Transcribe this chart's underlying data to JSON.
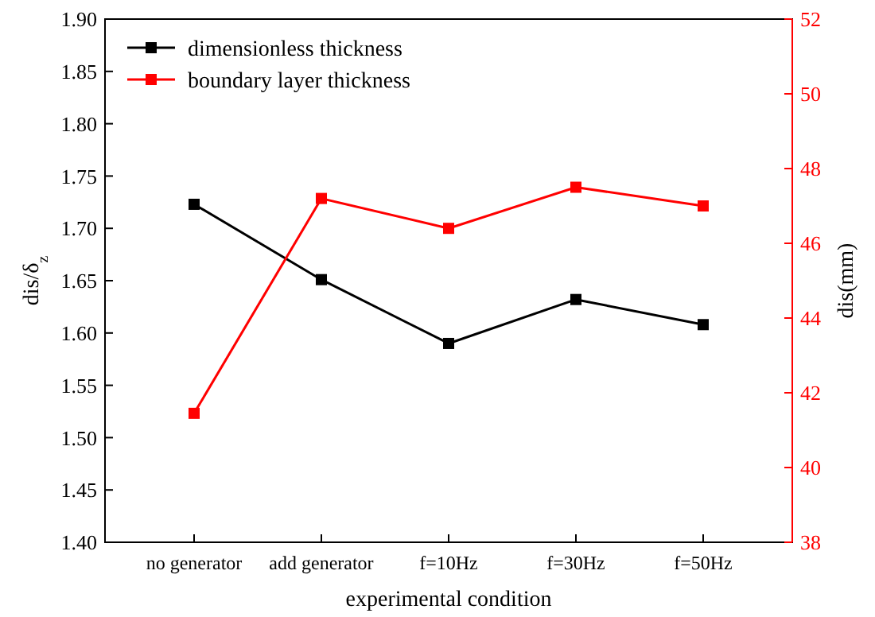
{
  "chart_data": {
    "type": "line",
    "xlabel": "experimental condition",
    "ylabel": "dis/δ$_{z}$",
    "y2label": "dis(mm)",
    "categories": [
      "no generator",
      "add generator",
      "f=10Hz",
      "f=30Hz",
      "f=50Hz"
    ],
    "ylim": [
      1.4,
      1.9
    ],
    "yticks": [
      {
        "value": 1.4,
        "label": "1.40"
      },
      {
        "value": 1.45,
        "label": "1.45"
      },
      {
        "value": 1.5,
        "label": "1.50"
      },
      {
        "value": 1.55,
        "label": "1.55"
      },
      {
        "value": 1.6,
        "label": "1.60"
      },
      {
        "value": 1.65,
        "label": "1.65"
      },
      {
        "value": 1.7,
        "label": "1.70"
      },
      {
        "value": 1.75,
        "label": "1.75"
      },
      {
        "value": 1.8,
        "label": "1.80"
      },
      {
        "value": 1.85,
        "label": "1.85"
      },
      {
        "value": 1.9,
        "label": "1.90"
      }
    ],
    "y2lim": [
      38,
      52
    ],
    "y2ticks": [
      38,
      40,
      42,
      44,
      46,
      48,
      50,
      52
    ],
    "series": [
      {
        "name": "dimensionless thickness",
        "color": "#000000",
        "values": [
          1.723,
          1.651,
          1.59,
          1.632,
          1.608
        ]
      },
      {
        "name": "boundary layer thickness",
        "color": "#ff0000",
        "axis": "y2",
        "values": [
          41.45,
          47.2,
          46.4,
          47.5,
          47.0
        ]
      }
    ],
    "marker": "square",
    "line_style": "solid",
    "legend": "top left",
    "grid": false
  }
}
